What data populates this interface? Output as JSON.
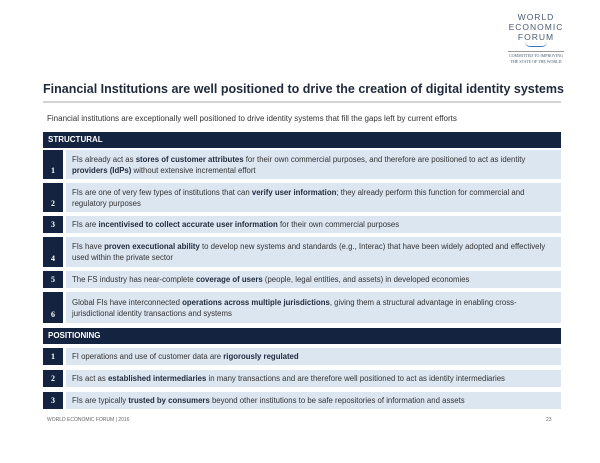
{
  "logo": {
    "lines": [
      "WORLD",
      "ECONOMIC",
      "FORUM"
    ],
    "tagline": "COMMITTED TO IMPROVING THE STATE OF THE WORLD"
  },
  "title": "Financial Institutions are well positioned to drive the creation of digital identity systems",
  "subtitle": "Financial institutions are exceptionally well positioned to drive identity systems that fill the gaps left by current efforts",
  "sections": [
    {
      "label": "STRUCTURAL",
      "items": [
        {
          "num": "1",
          "parts": [
            {
              "t": "FIs already act as "
            },
            {
              "t": "stores of customer attributes",
              "b": true
            },
            {
              "t": " for their own commercial purposes, and therefore are positioned to act as identity "
            },
            {
              "t": "providers (IdPs)",
              "b": true
            },
            {
              "t": " without extensive incremental effort"
            }
          ]
        },
        {
          "num": "2",
          "parts": [
            {
              "t": "FIs are one of very few types of institutions that can "
            },
            {
              "t": "verify user information",
              "b": true
            },
            {
              "t": "; they already perform this function for commercial and regulatory purposes"
            }
          ]
        },
        {
          "num": "3",
          "parts": [
            {
              "t": "FIs are "
            },
            {
              "t": "incentivised to collect accurate user information",
              "b": true
            },
            {
              "t": " for their own commercial purposes"
            }
          ]
        },
        {
          "num": "4",
          "parts": [
            {
              "t": "FIs have "
            },
            {
              "t": "proven executional ability",
              "b": true
            },
            {
              "t": " to develop new systems and standards (e.g., Interac) that have been widely adopted and effectively used within the private sector"
            }
          ]
        },
        {
          "num": "5",
          "parts": [
            {
              "t": "The FS industry has near-complete "
            },
            {
              "t": "coverage of users",
              "b": true
            },
            {
              "t": " (people, legal entities, and assets) in developed economies"
            }
          ]
        },
        {
          "num": "6",
          "parts": [
            {
              "t": "Global FIs have interconnected "
            },
            {
              "t": "operations across multiple jurisdictions",
              "b": true
            },
            {
              "t": ", giving them a structural advantage in enabling cross-jurisdictional identity transactions and systems"
            }
          ]
        }
      ]
    },
    {
      "label": "POSITIONING",
      "items": [
        {
          "num": "1",
          "parts": [
            {
              "t": "FI operations and use of customer data are "
            },
            {
              "t": "rigorously regulated",
              "b": true
            }
          ]
        },
        {
          "num": "2",
          "parts": [
            {
              "t": "FIs act as "
            },
            {
              "t": "established intermediaries",
              "b": true
            },
            {
              "t": " in many transactions and are therefore well positioned to act as identity intermediaries"
            }
          ]
        },
        {
          "num": "3",
          "parts": [
            {
              "t": "FIs are typically "
            },
            {
              "t": "trusted by consumers",
              "b": true
            },
            {
              "t": " beyond other institutions to be safe repositories of information and assets"
            }
          ]
        }
      ]
    }
  ],
  "footer": {
    "left": "WORLD ECONOMIC FORUM | 2016",
    "page": "23"
  },
  "colors": {
    "navy": "#14233f",
    "row_bg": "#dce6f1"
  }
}
